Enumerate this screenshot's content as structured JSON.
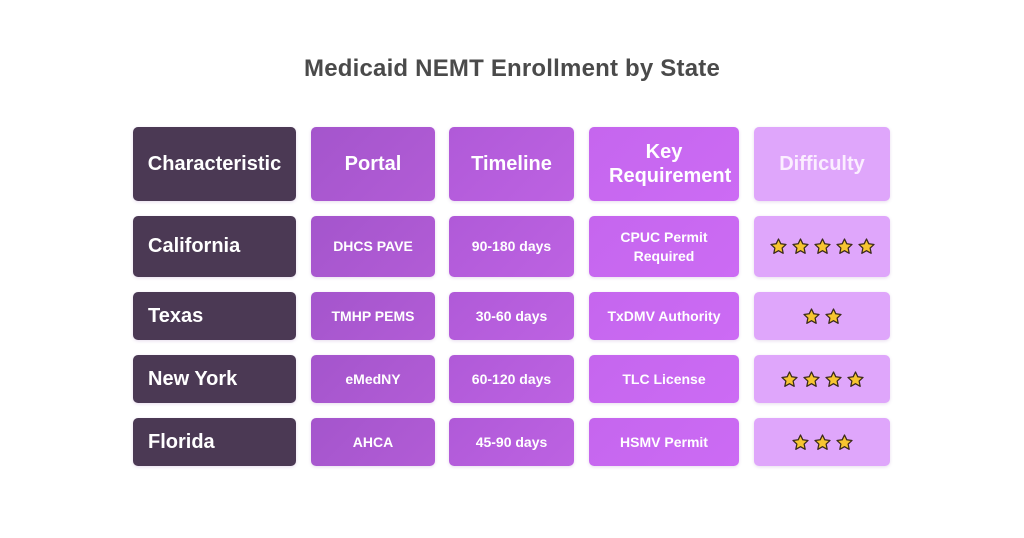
{
  "title": "Medicaid NEMT Enrollment by State",
  "headers": [
    "Characteristic",
    "Portal",
    "Timeline",
    "Key Requirement",
    "Difficulty"
  ],
  "rows": [
    {
      "state": "California",
      "portal": "DHCS PAVE",
      "timeline": "90-180 days",
      "requirement": "CPUC Permit Required",
      "difficulty": 5
    },
    {
      "state": "Texas",
      "portal": "TMHP PEMS",
      "timeline": "30-60 days",
      "requirement": "TxDMV Authority",
      "difficulty": 2
    },
    {
      "state": "New York",
      "portal": "eMedNY",
      "timeline": "60-120 days",
      "requirement": "TLC License",
      "difficulty": 4
    },
    {
      "state": "Florida",
      "portal": "AHCA",
      "timeline": "45-90 days",
      "requirement": "HSMV Permit",
      "difficulty": 3
    }
  ],
  "icons": {
    "difficulty": "star-icon"
  },
  "colors": {
    "state_col": "#4b3954",
    "portal_col": "#a855cf",
    "timeline_col": "#b65ddd",
    "requirement_col": "#c868f0",
    "difficulty_col": "#dfa6fb",
    "star_fill": "#f7c531",
    "star_stroke": "#3b2a1a"
  }
}
